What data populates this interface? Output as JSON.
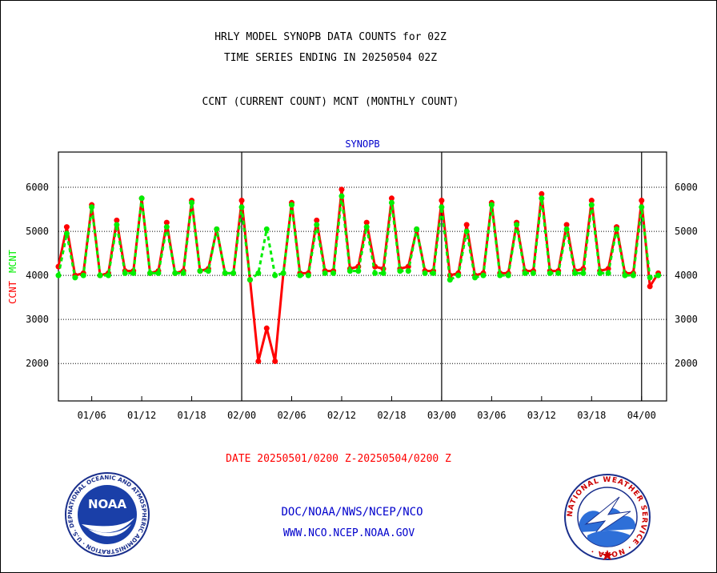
{
  "header": {
    "title_line1": "HRLY MODEL SYNOPB DATA COUNTS for 02Z",
    "title_line2": "TIME SERIES ENDING IN 20250504 02Z",
    "subtitle": "CCNT (CURRENT COUNT) MCNT (MONTHLY COUNT)"
  },
  "footer": {
    "date_range": "DATE 20250501/0200 Z-20250504/0200 Z",
    "org_path": "DOC/NOAA/NWS/NCEP/NCO",
    "website": "WWW.NCO.NCEP.NOAA.GOV"
  },
  "logos": {
    "noaa_text": "NOAA",
    "noaa_ring": "NATIONAL OCEANIC AND ATMOSPHERIC ADMINISTRATION · U.S. DEPARTMENT OF COMMERCE ·",
    "nws_ring": "NATIONAL WEATHER SERVICE · NOAA ·"
  },
  "colors": {
    "ccnt": "#ff0000",
    "mcnt": "#00ee00",
    "plot_label": "#0000cc",
    "footer_link": "#0000cc",
    "date_text": "#ff0000"
  },
  "chart_data": {
    "type": "line",
    "plot_label": "SYNOPB",
    "ylabel_ccnt": "CCNT",
    "ylabel_mcnt": "MCNT",
    "ylim": [
      1150,
      6800
    ],
    "xlim": [
      0,
      73
    ],
    "yticks": [
      2000,
      3000,
      4000,
      5000,
      6000
    ],
    "xticks": [
      {
        "x": 4,
        "label": "01/06"
      },
      {
        "x": 10,
        "label": "01/12"
      },
      {
        "x": 16,
        "label": "01/18"
      },
      {
        "x": 22,
        "label": "02/00"
      },
      {
        "x": 28,
        "label": "02/06"
      },
      {
        "x": 34,
        "label": "02/12"
      },
      {
        "x": 40,
        "label": "02/18"
      },
      {
        "x": 46,
        "label": "03/00"
      },
      {
        "x": 52,
        "label": "03/06"
      },
      {
        "x": 58,
        "label": "03/12"
      },
      {
        "x": 64,
        "label": "03/18"
      },
      {
        "x": 70,
        "label": "04/00"
      }
    ],
    "day_dividers": [
      22,
      46,
      70
    ],
    "grid": true,
    "series": [
      {
        "name": "CCNT",
        "style": "solid",
        "values": [
          4200,
          5100,
          4000,
          4050,
          5600,
          4000,
          4050,
          5250,
          4100,
          4100,
          5750,
          4050,
          4100,
          5200,
          4050,
          4100,
          5700,
          4100,
          4150,
          5050,
          4050,
          4050,
          5700,
          3900,
          2050,
          2800,
          2050,
          4050,
          5650,
          4050,
          4050,
          5250,
          4100,
          4100,
          5950,
          4150,
          4200,
          5200,
          4200,
          4150,
          5750,
          4150,
          4200,
          5050,
          4100,
          4100,
          5700,
          4000,
          4050,
          5150,
          4000,
          4050,
          5650,
          4050,
          4050,
          5200,
          4100,
          4100,
          5850,
          4100,
          4100,
          5150,
          4100,
          4150,
          5700,
          4100,
          4150,
          5100,
          4050,
          4050,
          5700,
          3750,
          4050
        ]
      },
      {
        "name": "MCNT",
        "style": "dashed",
        "values": [
          4000,
          4950,
          3950,
          4000,
          5550,
          4000,
          4000,
          5150,
          4050,
          4050,
          5750,
          4050,
          4050,
          5100,
          4050,
          4050,
          5650,
          4100,
          4100,
          5050,
          4050,
          4050,
          5550,
          3900,
          4050,
          5050,
          4000,
          4050,
          5600,
          4000,
          4000,
          5150,
          4050,
          4050,
          5800,
          4100,
          4100,
          5100,
          4050,
          4050,
          5650,
          4100,
          4100,
          5050,
          4050,
          4050,
          5550,
          3900,
          4000,
          5000,
          3950,
          4000,
          5600,
          4000,
          4000,
          5150,
          4050,
          4050,
          5750,
          4050,
          4050,
          5050,
          4050,
          4050,
          5600,
          4050,
          4050,
          5050,
          4000,
          4000,
          5550,
          3950,
          4000
        ]
      }
    ]
  }
}
